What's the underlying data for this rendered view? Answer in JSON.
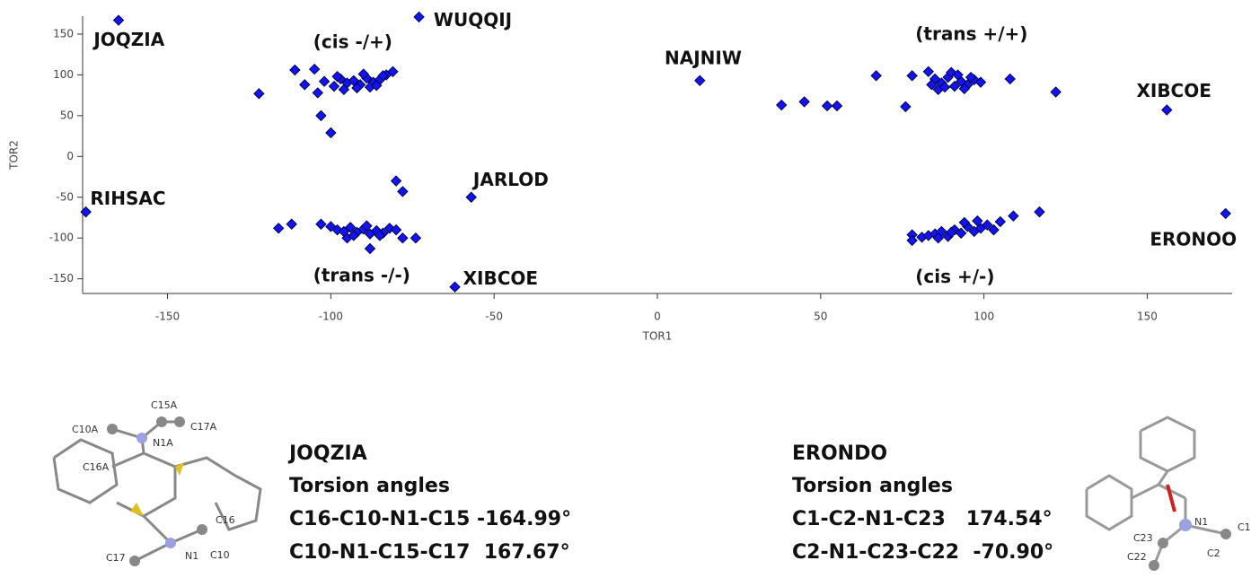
{
  "chart_data": {
    "type": "scatter",
    "x_label": "TOR1",
    "y_label": "TOR2",
    "xlim": [
      -176,
      176
    ],
    "ylim": [
      -168,
      172
    ],
    "xticks": [
      -150,
      -100,
      -50,
      0,
      50,
      100,
      150
    ],
    "yticks": [
      -150,
      -100,
      -50,
      0,
      50,
      100,
      150
    ],
    "grid": false,
    "series": [
      {
        "color": "#1414f0",
        "x": [
          -165,
          -73,
          13,
          156,
          -175,
          -57,
          -62,
          174,
          -122,
          -111,
          -108,
          -105,
          -104,
          -103,
          -100,
          -102,
          -99,
          -97,
          -95,
          -93,
          -91,
          -89,
          -87,
          -85,
          -83,
          -81,
          -96,
          -92,
          -88,
          -84,
          -90,
          -98,
          -86,
          -116,
          -112,
          -103,
          -100,
          -98,
          -96,
          -94,
          -92,
          -90,
          -88,
          -86,
          -84,
          -82,
          -80,
          -78,
          -74,
          -88,
          -95,
          -93,
          -89,
          -85,
          -80,
          -78,
          38,
          45,
          52,
          55,
          67,
          76,
          78,
          83,
          85,
          87,
          89,
          91,
          93,
          95,
          97,
          99,
          86,
          90,
          94,
          84,
          92,
          88,
          96,
          108,
          122,
          78,
          78,
          81,
          83,
          85,
          87,
          89,
          91,
          93,
          95,
          97,
          99,
          101,
          103,
          86,
          90,
          94,
          98,
          105,
          109,
          117
        ],
        "y": [
          167,
          171,
          93,
          57,
          -68,
          -50,
          -160,
          -70,
          77,
          106,
          88,
          107,
          78,
          50,
          29,
          92,
          86,
          95,
          90,
          93,
          88,
          96,
          91,
          94,
          100,
          104,
          82,
          84,
          85,
          99,
          101,
          98,
          87,
          -88,
          -83,
          -83,
          -86,
          -90,
          -92,
          -87,
          -93,
          -89,
          -95,
          -91,
          -94,
          -88,
          -90,
          -100,
          -100,
          -113,
          -100,
          -97,
          -85,
          -97,
          -30,
          -43,
          63,
          67,
          62,
          62,
          99,
          61,
          99,
          104,
          95,
          90,
          97,
          86,
          92,
          88,
          94,
          91,
          82,
          103,
          83,
          88,
          100,
          85,
          97,
          95,
          79,
          -96,
          -103,
          -99,
          -97,
          -95,
          -92,
          -98,
          -90,
          -94,
          -86,
          -92,
          -88,
          -84,
          -90,
          -100,
          -93,
          -81,
          -79,
          -80,
          -73,
          -68
        ]
      }
    ],
    "annotations": [
      {
        "text": "JOQZIA",
        "x": -172.6,
        "y": 142
      },
      {
        "text": "WUQQIJ",
        "x": -68.5,
        "y": 166
      },
      {
        "text": "(cis -/+)",
        "x": -105.4,
        "y": 139
      },
      {
        "text": "NAJNIW",
        "x": 2.2,
        "y": 119
      },
      {
        "text": "(trans +/+)",
        "x": 79,
        "y": 149
      },
      {
        "text": "XIBCOE",
        "x": 146.7,
        "y": 79
      },
      {
        "text": "RIHSAC",
        "x": -173.7,
        "y": -53
      },
      {
        "text": "JARLOD",
        "x": -56.4,
        "y": -30
      },
      {
        "text": "ERONOO",
        "x": 150.8,
        "y": -103
      },
      {
        "text": "(trans -/-)",
        "x": -105.4,
        "y": -147
      },
      {
        "text": "XIBCOE",
        "x": -59.5,
        "y": -151
      },
      {
        "text": "(cis +/-)",
        "x": 79,
        "y": -149
      }
    ]
  },
  "panels": [
    {
      "name": "JOQZIA",
      "lines": [
        "Torsion angles",
        "C16-C10-N1-C15 -164.99°",
        "C10-N1-C15-C17  167.67°"
      ],
      "atoms": [
        "C15A",
        "C10A",
        "N1A",
        "C17A",
        "C16A",
        "C16",
        "C17",
        "N1",
        "C10"
      ]
    },
    {
      "name": "ERONDO",
      "lines": [
        "Torsion angles",
        "C1-C2-N1-C23   174.54°",
        "C2-N1-C23-C22  -70.90°"
      ],
      "atoms": [
        "N1",
        "C1",
        "C23",
        "C2",
        "C22"
      ]
    }
  ]
}
